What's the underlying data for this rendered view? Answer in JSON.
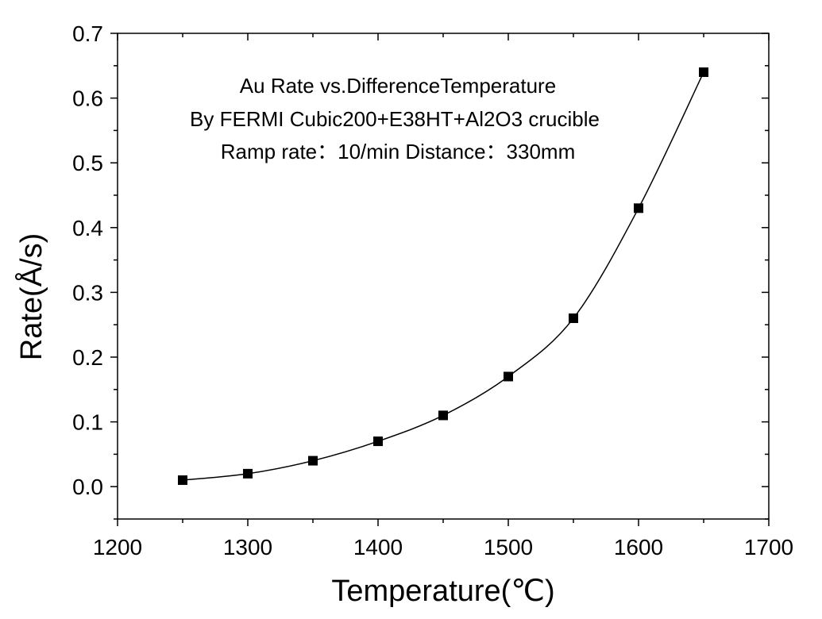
{
  "chart_data": {
    "type": "line",
    "title_lines": [
      "Au Rate vs.DifferenceTemperature",
      "By FERMI Cubic200+E38HT+Al2O3 crucible",
      "Ramp rate：10/min  Distance：330mm"
    ],
    "xlabel": "Temperature(℃)",
    "ylabel": "Rate(Å/s)",
    "xlim": [
      1200,
      1700
    ],
    "ylim": [
      -0.05,
      0.7
    ],
    "xticks": [
      1200,
      1300,
      1400,
      1500,
      1600,
      1700
    ],
    "yticks": [
      0.0,
      0.1,
      0.2,
      0.3,
      0.4,
      0.5,
      0.6,
      0.7
    ],
    "xtick_labels": [
      "1200",
      "1300",
      "1400",
      "1500",
      "1600",
      "1700"
    ],
    "ytick_labels": [
      "0.0",
      "0.1",
      "0.2",
      "0.3",
      "0.4",
      "0.5",
      "0.6",
      "0.7"
    ],
    "grid": false,
    "marker": "square",
    "series": [
      {
        "x": [
          1250,
          1300,
          1350,
          1400,
          1450,
          1500,
          1550,
          1600,
          1650
        ],
        "y": [
          0.01,
          0.02,
          0.04,
          0.07,
          0.11,
          0.17,
          0.26,
          0.43,
          0.64
        ],
        "color": "#000000"
      }
    ]
  }
}
